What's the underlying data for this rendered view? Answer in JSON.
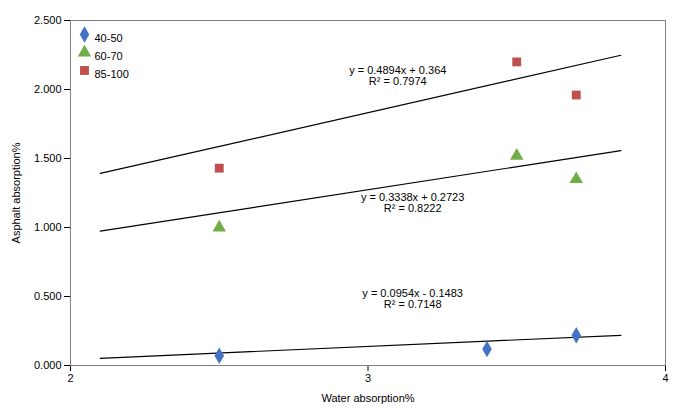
{
  "chart_data": {
    "type": "scatter",
    "xlabel": "Water absorption%",
    "ylabel": "Asphalt absorption%",
    "xlim": [
      2,
      4
    ],
    "ylim": [
      0,
      2.5
    ],
    "xticks": [
      2,
      3,
      4
    ],
    "yticks": [
      {
        "value": 0.0,
        "label": "0.000"
      },
      {
        "value": 0.5,
        "label": "0.500"
      },
      {
        "value": 1.0,
        "label": "1.000"
      },
      {
        "value": 1.5,
        "label": "1.500"
      },
      {
        "value": 2.0,
        "label": "2.000"
      },
      {
        "value": 2.5,
        "label": "2.500"
      }
    ],
    "grid": false,
    "legend": "upper left",
    "series": [
      {
        "name": "40-50",
        "color": "#4472C4",
        "marker": "diamond",
        "x": [
          2.5,
          3.4,
          3.7
        ],
        "values": [
          0.07,
          0.12,
          0.22
        ],
        "trendline": {
          "x": [
            2.1,
            3.85
          ],
          "values": [
            0.05204,
            0.21899
          ],
          "color": "black"
        }
      },
      {
        "name": "60-70",
        "color": "#70AD47",
        "marker": "triangle",
        "x": [
          2.5,
          3.5,
          3.7
        ],
        "values": [
          1.0,
          1.52,
          1.35
        ],
        "trendline": {
          "x": [
            2.1,
            3.85
          ],
          "values": [
            0.97328,
            1.55743
          ],
          "color": "black"
        }
      },
      {
        "name": "85-100",
        "color": "#C0504D",
        "marker": "square",
        "x": [
          2.5,
          3.5,
          3.7
        ],
        "values": [
          1.43,
          2.2,
          1.96
        ],
        "trendline": {
          "x": [
            2.1,
            3.85
          ],
          "values": [
            1.39174,
            2.24819
          ],
          "color": "black"
        }
      }
    ],
    "annotations": [
      {
        "x": 3.15,
        "y": 0.48,
        "text": "y = 0.0954x - 0.1483\nR² = 0.7148"
      },
      {
        "x": 3.15,
        "y": 1.18,
        "text": "y = 0.3338x + 0.2723\nR² = 0.8222"
      },
      {
        "x": 3.1,
        "y": 2.1,
        "text": "y = 0.4894x + 0.364\nR² = 0.7974"
      }
    ]
  }
}
